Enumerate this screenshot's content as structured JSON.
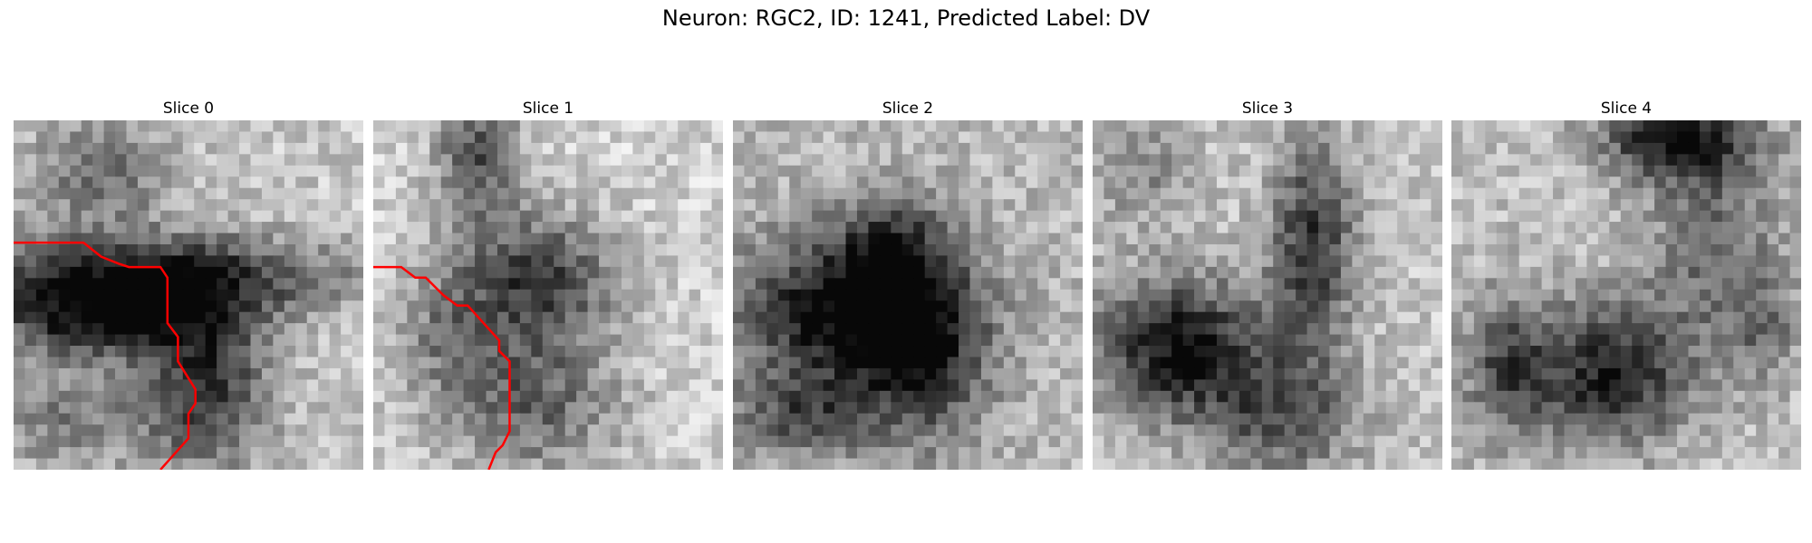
{
  "figure": {
    "title": "Neuron: RGC2, ID: 1241, Predicted Label: DV"
  },
  "panels": [
    {
      "title": "Slice 0",
      "seed": 11,
      "dark_blobs": [
        [
          0.35,
          0.45,
          0.55,
          0.12,
          1.0
        ],
        [
          0.25,
          0.58,
          0.3,
          0.1,
          0.8
        ],
        [
          0.55,
          0.75,
          0.18,
          0.25,
          0.8
        ],
        [
          0.25,
          0.15,
          0.2,
          0.15,
          0.5
        ],
        [
          0.15,
          0.85,
          0.25,
          0.15,
          0.4
        ]
      ],
      "base": 0.78,
      "trace": [
        [
          0.0,
          0.35
        ],
        [
          0.2,
          0.35
        ],
        [
          0.25,
          0.39
        ],
        [
          0.3,
          0.41
        ],
        [
          0.33,
          0.42
        ],
        [
          0.42,
          0.42
        ],
        [
          0.44,
          0.45
        ],
        [
          0.44,
          0.58
        ],
        [
          0.47,
          0.62
        ],
        [
          0.47,
          0.69
        ],
        [
          0.52,
          0.77
        ],
        [
          0.52,
          0.81
        ],
        [
          0.5,
          0.84
        ],
        [
          0.5,
          0.91
        ],
        [
          0.42,
          1.0
        ]
      ]
    },
    {
      "title": "Slice 1",
      "seed": 23,
      "dark_blobs": [
        [
          0.47,
          0.45,
          0.22,
          0.18,
          0.8
        ],
        [
          0.3,
          0.1,
          0.12,
          0.18,
          0.7
        ],
        [
          0.45,
          0.8,
          0.25,
          0.22,
          0.6
        ],
        [
          0.2,
          0.6,
          0.15,
          0.2,
          0.35
        ]
      ],
      "base": 0.82,
      "trace": [
        [
          0.0,
          0.42
        ],
        [
          0.08,
          0.42
        ],
        [
          0.12,
          0.45
        ],
        [
          0.15,
          0.45
        ],
        [
          0.2,
          0.5
        ],
        [
          0.24,
          0.53
        ],
        [
          0.27,
          0.53
        ],
        [
          0.36,
          0.63
        ],
        [
          0.36,
          0.66
        ],
        [
          0.39,
          0.69
        ],
        [
          0.39,
          0.89
        ],
        [
          0.37,
          0.93
        ],
        [
          0.35,
          0.95
        ],
        [
          0.33,
          1.0
        ]
      ]
    },
    {
      "title": "Slice 2",
      "seed": 37,
      "dark_blobs": [
        [
          0.32,
          0.55,
          0.3,
          0.22,
          1.0
        ],
        [
          0.55,
          0.65,
          0.18,
          0.28,
          0.7
        ],
        [
          0.45,
          0.35,
          0.15,
          0.12,
          0.45
        ],
        [
          0.2,
          0.85,
          0.2,
          0.12,
          0.5
        ]
      ],
      "base": 0.72,
      "trace": []
    },
    {
      "title": "Slice 3",
      "seed": 53,
      "dark_blobs": [
        [
          0.25,
          0.65,
          0.25,
          0.2,
          1.0
        ],
        [
          0.63,
          0.35,
          0.12,
          0.3,
          0.8
        ],
        [
          0.55,
          0.85,
          0.22,
          0.18,
          0.6
        ],
        [
          0.15,
          0.15,
          0.15,
          0.15,
          0.35
        ]
      ],
      "base": 0.78,
      "trace": []
    },
    {
      "title": "Slice 4",
      "seed": 71,
      "dark_blobs": [
        [
          0.65,
          0.05,
          0.22,
          0.12,
          1.0
        ],
        [
          0.45,
          0.72,
          0.25,
          0.2,
          0.9
        ],
        [
          0.75,
          0.35,
          0.18,
          0.25,
          0.5
        ],
        [
          0.15,
          0.7,
          0.12,
          0.22,
          0.5
        ],
        [
          0.9,
          0.6,
          0.1,
          0.15,
          0.4
        ]
      ],
      "base": 0.76,
      "trace": []
    }
  ]
}
